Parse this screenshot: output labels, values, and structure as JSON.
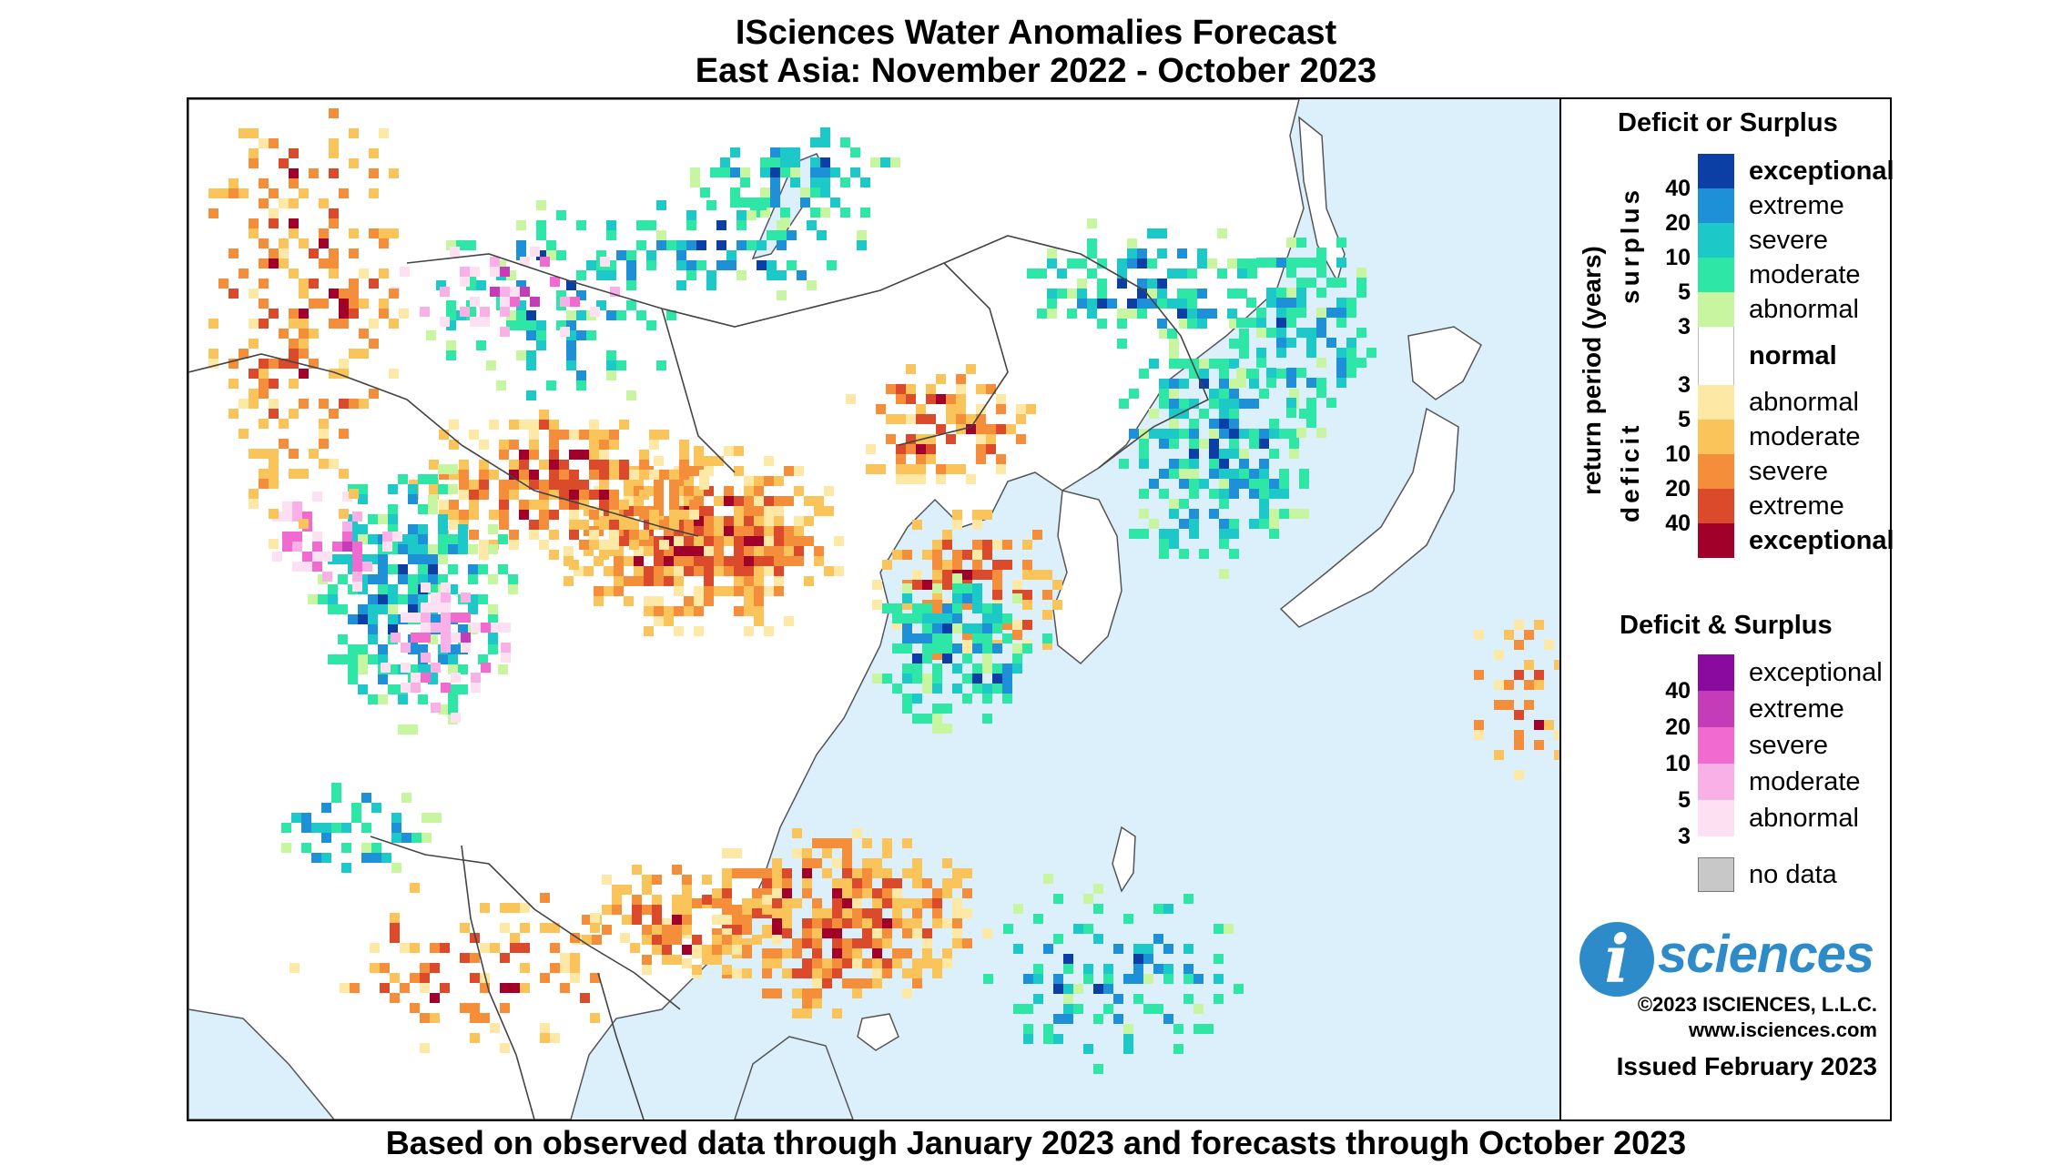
{
  "title": {
    "line1": "ISciences Water Anomalies Forecast",
    "line2": "East Asia: November 2022 - October 2023"
  },
  "footer": "Based on observed data through January 2023 and forecasts through October 2023",
  "legend": {
    "deficit_or_surplus": {
      "heading": "Deficit or Surplus",
      "axis_label": "return period (years)",
      "surplus_label": "surplus",
      "deficit_label": "deficit",
      "surplus_numbers": [
        "40",
        "20",
        "10",
        "5",
        "3"
      ],
      "deficit_numbers": [
        "3",
        "5",
        "10",
        "20",
        "40"
      ],
      "surplus_classes": [
        {
          "label": "exceptional",
          "color": "#0b3fa5"
        },
        {
          "label": "extreme",
          "color": "#1e90d8"
        },
        {
          "label": "severe",
          "color": "#1cc8c8"
        },
        {
          "label": "moderate",
          "color": "#2ee6a6"
        },
        {
          "label": "abnormal",
          "color": "#c8f5a0"
        }
      ],
      "normal": {
        "label": "normal",
        "color": "#ffffff"
      },
      "deficit_classes": [
        {
          "label": "abnormal",
          "color": "#fde8a6"
        },
        {
          "label": "moderate",
          "color": "#fbc45a"
        },
        {
          "label": "severe",
          "color": "#f58e3a"
        },
        {
          "label": "extreme",
          "color": "#dc4a2c"
        },
        {
          "label": "exceptional",
          "color": "#a0002a"
        }
      ]
    },
    "deficit_and_surplus": {
      "heading": "Deficit & Surplus",
      "numbers": [
        "40",
        "20",
        "10",
        "5",
        "3"
      ],
      "classes": [
        {
          "label": "exceptional",
          "color": "#8a0aa0"
        },
        {
          "label": "extreme",
          "color": "#c43cb8"
        },
        {
          "label": "severe",
          "color": "#f06ad0"
        },
        {
          "label": "moderate",
          "color": "#f8b0e6"
        },
        {
          "label": "abnormal",
          "color": "#fde0f2"
        }
      ]
    },
    "no_data": {
      "label": "no data",
      "color": "#c8c8c8"
    }
  },
  "branding": {
    "logo_letter": "i",
    "logo_text": "sciences",
    "copyright": "©2023 ISCIENCES, L.L.C.",
    "website": "www.isciences.com",
    "issued": "Issued February 2023"
  }
}
